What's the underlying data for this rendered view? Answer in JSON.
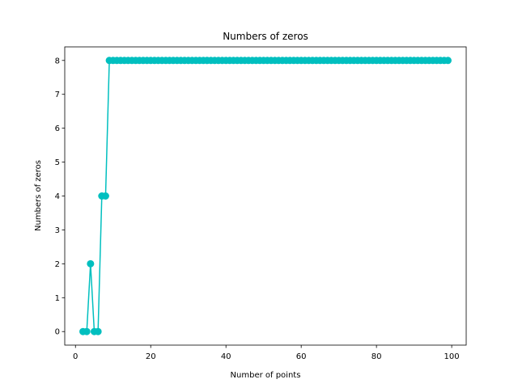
{
  "chart_data": {
    "type": "line",
    "title": "Numbers of zeros",
    "xlabel": "Number of points",
    "ylabel": "Numbers of zeros",
    "xlim": [
      -2.85,
      103.85
    ],
    "ylim": [
      -0.4,
      8.4
    ],
    "xticks": [
      0,
      20,
      40,
      60,
      80,
      100
    ],
    "yticks": [
      0,
      1,
      2,
      3,
      4,
      5,
      6,
      7,
      8
    ],
    "grid": false,
    "series": [
      {
        "color": "#00bfbf",
        "marker": "circle",
        "x": [
          2,
          3,
          4,
          5,
          6,
          7,
          8,
          9,
          10,
          11,
          12,
          13,
          14,
          15,
          16,
          17,
          18,
          19,
          20,
          21,
          22,
          23,
          24,
          25,
          26,
          27,
          28,
          29,
          30,
          31,
          32,
          33,
          34,
          35,
          36,
          37,
          38,
          39,
          40,
          41,
          42,
          43,
          44,
          45,
          46,
          47,
          48,
          49,
          50,
          51,
          52,
          53,
          54,
          55,
          56,
          57,
          58,
          59,
          60,
          61,
          62,
          63,
          64,
          65,
          66,
          67,
          68,
          69,
          70,
          71,
          72,
          73,
          74,
          75,
          76,
          77,
          78,
          79,
          80,
          81,
          82,
          83,
          84,
          85,
          86,
          87,
          88,
          89,
          90,
          91,
          92,
          93,
          94,
          95,
          96,
          97,
          98,
          99
        ],
        "y": [
          0,
          0,
          2,
          0,
          0,
          4,
          4,
          8,
          8,
          8,
          8,
          8,
          8,
          8,
          8,
          8,
          8,
          8,
          8,
          8,
          8,
          8,
          8,
          8,
          8,
          8,
          8,
          8,
          8,
          8,
          8,
          8,
          8,
          8,
          8,
          8,
          8,
          8,
          8,
          8,
          8,
          8,
          8,
          8,
          8,
          8,
          8,
          8,
          8,
          8,
          8,
          8,
          8,
          8,
          8,
          8,
          8,
          8,
          8,
          8,
          8,
          8,
          8,
          8,
          8,
          8,
          8,
          8,
          8,
          8,
          8,
          8,
          8,
          8,
          8,
          8,
          8,
          8,
          8,
          8,
          8,
          8,
          8,
          8,
          8,
          8,
          8,
          8,
          8,
          8,
          8,
          8,
          8,
          8,
          8,
          8,
          8,
          8
        ]
      }
    ]
  }
}
